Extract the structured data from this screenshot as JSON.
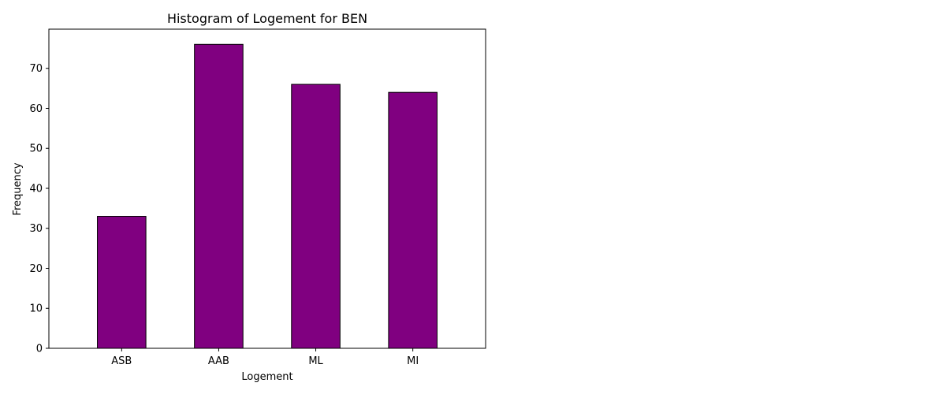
{
  "chart_data": {
    "type": "bar",
    "title": "Histogram of Logement for BEN",
    "xlabel": "Logement",
    "ylabel": "Frequency",
    "categories": [
      "ASB",
      "AAB",
      "ML",
      "MI"
    ],
    "values": [
      33,
      76,
      66,
      64
    ],
    "ylim": [
      0,
      80
    ],
    "yticks": [
      0,
      10,
      20,
      30,
      40,
      50,
      60,
      70
    ],
    "grid": false,
    "legend": false,
    "bar_color": "#800080",
    "edge_color": "#000000"
  }
}
